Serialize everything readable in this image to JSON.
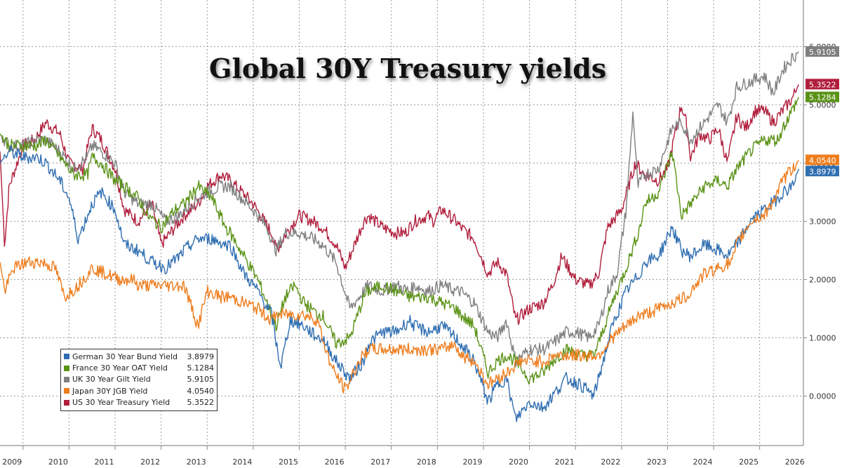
{
  "chart_data": {
    "type": "line",
    "title": "Global 30Y Treasury yields",
    "x_axis": {
      "tick_labels": [
        "2009",
        "2010",
        "2011",
        "2012",
        "2013",
        "2014",
        "2015",
        "2016",
        "2017",
        "2018",
        "2019",
        "2020",
        "2021",
        "2022",
        "2023",
        "2024",
        "2025",
        "2026"
      ],
      "range": [
        2009.0,
        2026.45
      ]
    },
    "y_axis": {
      "tick_labels": [
        "6.0000",
        "5.0000",
        "4.0000",
        "3.0000",
        "2.0000",
        "1.0000",
        "0.0000"
      ],
      "tick_values": [
        6,
        5,
        4,
        3,
        2,
        1,
        0
      ],
      "range": [
        -0.85,
        6.8
      ],
      "position": "right"
    },
    "grid": true,
    "legend_position": "bottom-left",
    "series": [
      {
        "name": "US 30 Year Treasury Yield",
        "last": "5.3522",
        "color": "#b01e3c",
        "x": [
          2009.0,
          2009.1,
          2009.2,
          2009.5,
          2009.75,
          2010.0,
          2010.3,
          2010.5,
          2010.8,
          2011.0,
          2011.2,
          2011.5,
          2011.7,
          2012.0,
          2012.3,
          2012.5,
          2012.8,
          2013.0,
          2013.3,
          2013.5,
          2013.8,
          2014.0,
          2014.5,
          2014.9,
          2015.0,
          2015.3,
          2015.5,
          2015.8,
          2016.0,
          2016.3,
          2016.5,
          2016.9,
          2017.0,
          2017.3,
          2017.6,
          2017.8,
          2018.0,
          2018.3,
          2018.4,
          2018.6,
          2018.9,
          2019.0,
          2019.3,
          2019.6,
          2019.8,
          2020.0,
          2020.2,
          2020.5,
          2020.8,
          2021.0,
          2021.2,
          2021.5,
          2021.8,
          2022.0,
          2022.2,
          2022.5,
          2022.8,
          2023.0,
          2023.3,
          2023.5,
          2023.8,
          2023.9,
          2024.0,
          2024.2,
          2024.4,
          2024.6,
          2024.8,
          2025.0,
          2025.2,
          2025.4,
          2025.6,
          2025.8,
          2026.0,
          2026.2,
          2026.35
        ],
        "y": [
          4.2,
          2.6,
          3.6,
          4.3,
          4.4,
          4.7,
          4.5,
          4.0,
          3.9,
          4.6,
          4.4,
          3.9,
          3.2,
          3.0,
          3.3,
          2.6,
          2.9,
          3.1,
          3.3,
          3.6,
          3.8,
          3.7,
          3.3,
          2.8,
          2.5,
          2.9,
          3.1,
          3.0,
          2.9,
          2.6,
          2.2,
          3.0,
          3.1,
          2.9,
          2.8,
          2.8,
          3.0,
          3.1,
          3.0,
          3.2,
          3.0,
          2.9,
          2.7,
          2.1,
          2.3,
          2.1,
          1.3,
          1.5,
          1.6,
          1.9,
          2.4,
          2.0,
          1.9,
          2.1,
          2.9,
          3.2,
          4.0,
          3.8,
          3.7,
          3.9,
          5.0,
          4.7,
          4.1,
          4.5,
          4.4,
          4.6,
          4.0,
          4.8,
          4.6,
          4.9,
          4.9,
          4.7,
          4.9,
          5.1,
          5.35
        ],
        "label": "5.3522"
      },
      {
        "name": "UK 30 Year Gilt Yield",
        "last": "5.9105",
        "color": "#7f7f7f",
        "x": [
          2009.0,
          2009.2,
          2009.5,
          2009.8,
          2010.0,
          2010.3,
          2010.6,
          2010.9,
          2011.0,
          2011.2,
          2011.5,
          2011.7,
          2012.0,
          2012.3,
          2012.6,
          2012.9,
          2013.0,
          2013.3,
          2013.5,
          2013.8,
          2014.0,
          2014.5,
          2014.8,
          2015.0,
          2015.2,
          2015.5,
          2015.8,
          2016.0,
          2016.3,
          2016.6,
          2016.9,
          2017.0,
          2017.3,
          2017.6,
          2017.9,
          2018.0,
          2018.3,
          2018.6,
          2018.9,
          2019.0,
          2019.3,
          2019.6,
          2019.8,
          2020.0,
          2020.2,
          2020.5,
          2020.8,
          2021.0,
          2021.3,
          2021.5,
          2021.8,
          2022.0,
          2022.2,
          2022.4,
          2022.6,
          2022.75,
          2022.85,
          2023.0,
          2023.3,
          2023.6,
          2023.8,
          2024.0,
          2024.3,
          2024.6,
          2024.8,
          2025.0,
          2025.3,
          2025.6,
          2025.8,
          2026.0,
          2026.2,
          2026.35
        ],
        "y": [
          4.5,
          4.3,
          4.3,
          4.4,
          4.4,
          4.2,
          3.9,
          4.1,
          4.3,
          4.2,
          4.0,
          3.5,
          3.3,
          3.3,
          3.0,
          3.1,
          3.2,
          3.4,
          3.5,
          3.6,
          3.6,
          3.2,
          2.9,
          2.5,
          2.8,
          2.8,
          2.7,
          2.6,
          2.3,
          1.5,
          1.8,
          1.9,
          1.8,
          1.9,
          1.8,
          1.9,
          1.8,
          1.9,
          1.8,
          1.8,
          1.6,
          1.1,
          1.0,
          1.3,
          0.6,
          0.8,
          0.8,
          0.9,
          1.1,
          1.1,
          1.0,
          1.2,
          1.8,
          2.1,
          3.2,
          4.9,
          3.6,
          3.8,
          3.9,
          4.6,
          4.7,
          4.4,
          4.7,
          5.0,
          4.7,
          5.3,
          5.4,
          5.5,
          5.2,
          5.6,
          5.8,
          5.91
        ],
        "label": "5.9105"
      },
      {
        "name": "France 30 Year OAT Yield",
        "last": "5.1284",
        "color": "#5a9216",
        "x": [
          2009.0,
          2009.2,
          2009.5,
          2009.8,
          2010.0,
          2010.3,
          2010.6,
          2010.9,
          2011.0,
          2011.2,
          2011.5,
          2011.7,
          2012.0,
          2012.2,
          2012.5,
          2012.8,
          2013.0,
          2013.3,
          2013.6,
          2013.9,
          2014.0,
          2014.3,
          2014.6,
          2014.9,
          2015.0,
          2015.2,
          2015.4,
          2015.6,
          2015.9,
          2016.0,
          2016.3,
          2016.6,
          2016.9,
          2017.0,
          2017.3,
          2017.6,
          2017.9,
          2018.0,
          2018.3,
          2018.6,
          2018.9,
          2019.0,
          2019.3,
          2019.6,
          2019.8,
          2020.0,
          2020.2,
          2020.5,
          2020.8,
          2021.0,
          2021.3,
          2021.6,
          2021.9,
          2022.0,
          2022.3,
          2022.6,
          2022.9,
          2023.0,
          2023.3,
          2023.6,
          2023.8,
          2024.0,
          2024.3,
          2024.6,
          2024.8,
          2025.0,
          2025.3,
          2025.6,
          2025.9,
          2026.0,
          2026.2,
          2026.35
        ],
        "y": [
          4.5,
          4.3,
          4.3,
          4.3,
          4.4,
          4.1,
          3.8,
          3.8,
          4.1,
          4.0,
          3.7,
          3.6,
          3.4,
          3.1,
          2.9,
          3.2,
          3.3,
          3.6,
          3.4,
          2.9,
          2.8,
          2.4,
          2.0,
          1.4,
          1.2,
          1.7,
          1.9,
          1.6,
          1.4,
          1.4,
          0.9,
          1.0,
          1.7,
          1.8,
          1.9,
          1.8,
          1.7,
          1.7,
          1.7,
          1.6,
          1.5,
          1.4,
          1.2,
          0.4,
          0.6,
          0.7,
          0.6,
          0.3,
          0.4,
          0.6,
          0.8,
          0.7,
          0.7,
          0.9,
          1.6,
          2.2,
          2.9,
          3.3,
          3.5,
          4.2,
          3.1,
          3.3,
          3.6,
          3.7,
          3.6,
          3.9,
          4.2,
          4.4,
          4.4,
          4.6,
          4.9,
          5.13
        ],
        "label": "5.1284"
      },
      {
        "name": "German 30 Year Bund Yield",
        "last": "3.8979",
        "color": "#2f6eb1",
        "x": [
          2009.0,
          2009.2,
          2009.5,
          2009.8,
          2010.0,
          2010.3,
          2010.5,
          2010.7,
          2011.0,
          2011.2,
          2011.5,
          2011.7,
          2012.0,
          2012.3,
          2012.6,
          2012.9,
          2013.0,
          2013.3,
          2013.6,
          2013.9,
          2014.0,
          2014.3,
          2014.6,
          2014.9,
          2015.0,
          2015.1,
          2015.3,
          2015.6,
          2015.9,
          2016.0,
          2016.3,
          2016.6,
          2016.9,
          2017.0,
          2017.3,
          2017.6,
          2017.9,
          2018.0,
          2018.3,
          2018.6,
          2018.9,
          2019.0,
          2019.3,
          2019.6,
          2019.8,
          2020.0,
          2020.2,
          2020.5,
          2020.8,
          2021.0,
          2021.3,
          2021.6,
          2021.9,
          2022.0,
          2022.3,
          2022.6,
          2022.9,
          2023.0,
          2023.3,
          2023.6,
          2023.8,
          2024.0,
          2024.3,
          2024.6,
          2024.8,
          2025.0,
          2025.3,
          2025.6,
          2025.9,
          2026.0,
          2026.2,
          2026.35
        ],
        "y": [
          4.0,
          4.2,
          4.1,
          4.1,
          4.0,
          3.7,
          3.4,
          2.7,
          3.3,
          3.5,
          3.2,
          2.6,
          2.5,
          2.3,
          2.2,
          2.4,
          2.5,
          2.7,
          2.7,
          2.6,
          2.6,
          2.1,
          1.8,
          1.4,
          0.9,
          0.5,
          1.3,
          1.2,
          1.0,
          1.0,
          0.6,
          0.3,
          0.6,
          0.9,
          1.1,
          1.1,
          1.3,
          1.2,
          1.1,
          1.2,
          1.0,
          0.9,
          0.6,
          -0.1,
          0.2,
          0.3,
          -0.4,
          -0.1,
          -0.2,
          0.0,
          0.3,
          0.2,
          0.0,
          0.3,
          1.2,
          1.8,
          2.1,
          2.3,
          2.4,
          2.9,
          2.5,
          2.4,
          2.6,
          2.5,
          2.4,
          2.6,
          3.0,
          3.2,
          3.4,
          3.5,
          3.6,
          3.9
        ],
        "label": "3.8979"
      },
      {
        "name": "Japan 30Y JGB Yield",
        "last": "4.0540",
        "color": "#ee7d1e",
        "x": [
          2009.0,
          2009.1,
          2009.3,
          2009.6,
          2009.9,
          2010.2,
          2010.4,
          2010.7,
          2011.0,
          2011.3,
          2011.6,
          2011.9,
          2012.0,
          2012.3,
          2012.6,
          2012.9,
          2013.0,
          2013.3,
          2013.5,
          2013.8,
          2014.0,
          2014.3,
          2014.6,
          2014.9,
          2015.0,
          2015.3,
          2015.6,
          2015.9,
          2016.0,
          2016.2,
          2016.5,
          2016.8,
          2017.0,
          2017.3,
          2017.6,
          2017.9,
          2018.0,
          2018.3,
          2018.6,
          2018.9,
          2019.0,
          2019.3,
          2019.6,
          2019.8,
          2020.0,
          2020.3,
          2020.6,
          2020.9,
          2021.0,
          2021.3,
          2021.6,
          2021.9,
          2022.0,
          2022.3,
          2022.6,
          2022.9,
          2023.0,
          2023.3,
          2023.6,
          2023.9,
          2024.0,
          2024.3,
          2024.6,
          2024.9,
          2025.0,
          2025.3,
          2025.6,
          2025.9,
          2026.0,
          2026.2,
          2026.35
        ],
        "y": [
          2.3,
          1.8,
          2.2,
          2.3,
          2.3,
          2.2,
          1.7,
          1.9,
          2.2,
          2.1,
          2.0,
          2.0,
          1.9,
          1.9,
          1.9,
          1.9,
          1.9,
          1.2,
          1.8,
          1.7,
          1.7,
          1.6,
          1.5,
          1.3,
          1.4,
          1.4,
          1.4,
          1.3,
          1.0,
          0.5,
          0.1,
          0.6,
          0.8,
          0.8,
          0.8,
          0.8,
          0.8,
          0.8,
          0.8,
          0.9,
          0.7,
          0.6,
          0.2,
          0.3,
          0.4,
          0.6,
          0.6,
          0.6,
          0.7,
          0.7,
          0.7,
          0.7,
          0.7,
          1.0,
          1.2,
          1.4,
          1.4,
          1.5,
          1.6,
          1.7,
          1.8,
          2.1,
          2.2,
          2.3,
          2.6,
          3.0,
          3.1,
          3.5,
          3.7,
          3.9,
          4.05
        ],
        "label": "4.0540"
      }
    ]
  }
}
